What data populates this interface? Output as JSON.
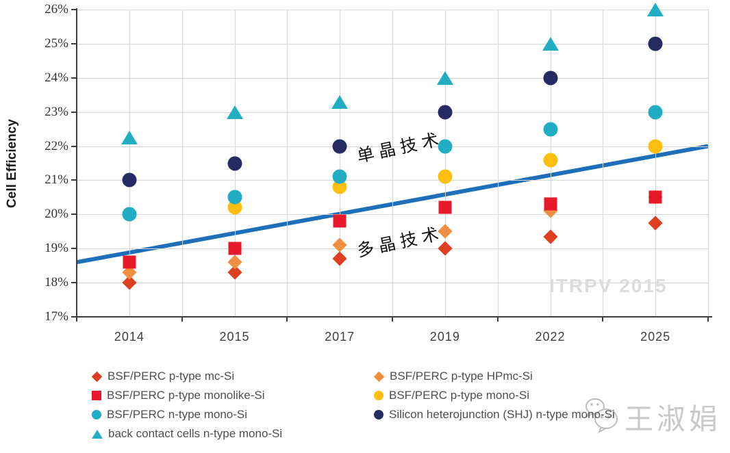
{
  "ylabel": "Cell Efficiency",
  "axes": {
    "y_ticks": [
      "26%",
      "25%",
      "24%",
      "23%",
      "22%",
      "21%",
      "20%",
      "19%",
      "18%",
      "17%"
    ],
    "x_ticks": [
      "2014",
      "2015",
      "2017",
      "2019",
      "2022",
      "2025"
    ]
  },
  "annotations": {
    "mono_tech": "单晶技术",
    "multi_tech": "多晶技术"
  },
  "watermarks": {
    "itrpv": "ITRPV 2015",
    "author": "王淑娟"
  },
  "chart_data": {
    "type": "scatter",
    "title": "",
    "xlabel": "",
    "ylabel": "Cell Efficiency",
    "ylim": [
      17,
      26
    ],
    "y_tick_step": 1,
    "y_tick_format": "percent",
    "grid": true,
    "legend_position": "bottom",
    "categories": [
      "2014",
      "2015",
      "2017",
      "2019",
      "2022",
      "2025"
    ],
    "series": [
      {
        "name": "BSF/PERC p-type mc-Si",
        "marker": "diamond",
        "color": "#df3e21",
        "values": [
          18.0,
          18.3,
          18.7,
          19.0,
          19.35,
          19.75
        ],
        "zorder": 2,
        "legend_col": 0,
        "legend_row": 0
      },
      {
        "name": "BSF/PERC p-type HPmc-Si",
        "marker": "diamond",
        "color": "#ef8f42",
        "values": [
          18.3,
          18.6,
          19.1,
          19.5,
          20.1,
          20.5
        ],
        "zorder": 3,
        "legend_col": 1,
        "legend_row": 0
      },
      {
        "name": "BSF/PERC p-type monolike-Si",
        "marker": "square",
        "color": "#e8192b",
        "values": [
          18.6,
          19.0,
          19.8,
          20.2,
          20.3,
          20.5
        ],
        "zorder": 4,
        "legend_col": 0,
        "legend_row": 1
      },
      {
        "name": "BSF/PERC p-type mono-Si",
        "marker": "circle",
        "color": "#fcbf10",
        "values": [
          20.0,
          20.2,
          20.8,
          21.1,
          21.6,
          22.0
        ],
        "zorder": 1,
        "legend_col": 1,
        "legend_row": 1
      },
      {
        "name": "BSF/PERC n-type mono-Si",
        "marker": "circle",
        "color": "#21aec5",
        "values": [
          20.0,
          20.5,
          21.1,
          22.0,
          22.5,
          23.0
        ],
        "zorder": 5,
        "legend_col": 0,
        "legend_row": 2
      },
      {
        "name": "Silicon heterojunction (SHJ) n-type mono-Si",
        "marker": "circle",
        "color": "#252c64",
        "values": [
          21.0,
          21.5,
          22.0,
          23.0,
          24.0,
          25.0
        ],
        "zorder": 6,
        "legend_col": 1,
        "legend_row": 2
      },
      {
        "name": "back contact cells n-type mono-Si",
        "marker": "triangle",
        "color": "#21aec5",
        "values": [
          22.25,
          23.0,
          23.3,
          24.0,
          25.0,
          26.0
        ],
        "zorder": 7,
        "legend_col": 0,
        "legend_row": 3
      }
    ],
    "trend_line": {
      "start_pct": 18.6,
      "end_pct": 22.0,
      "color": "#1c6fb8",
      "width": 6
    }
  }
}
